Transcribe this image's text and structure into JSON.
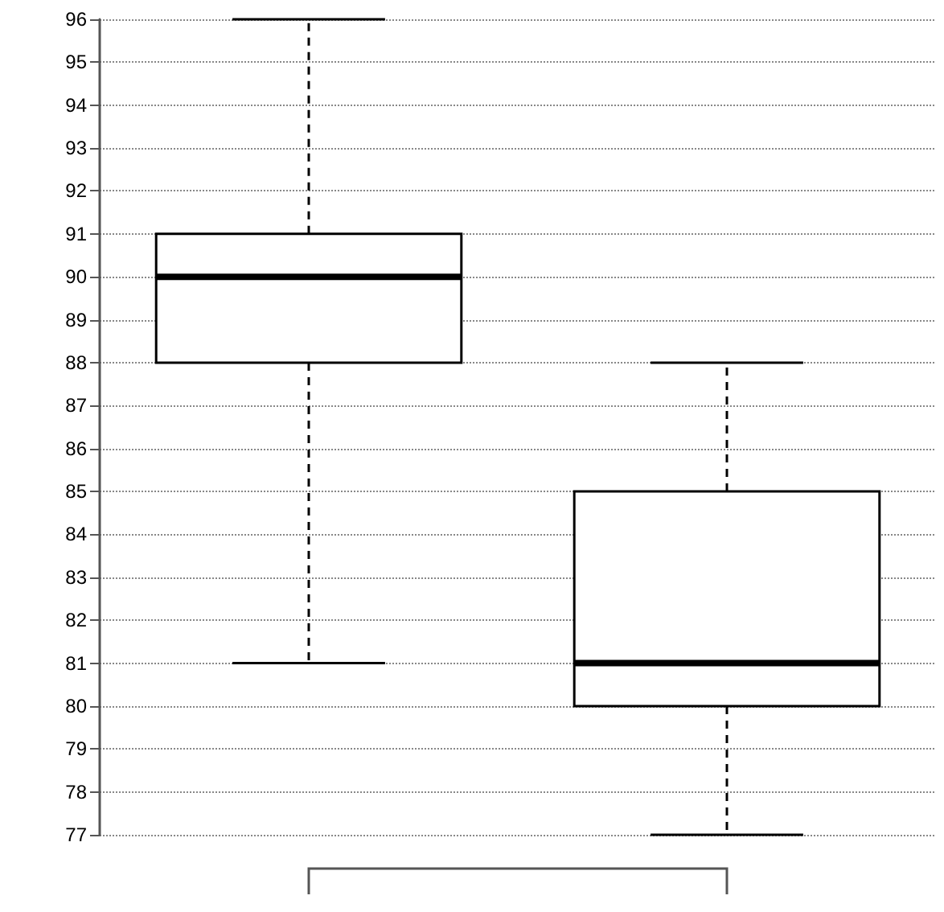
{
  "chart_data": {
    "type": "box",
    "categories": [
      null,
      null
    ],
    "boxes": [
      {
        "low": 81,
        "q1": 88,
        "median": 90,
        "q3": 91,
        "high": 96
      },
      {
        "low": 77,
        "q1": 80,
        "median": 81,
        "q3": 85,
        "high": 88
      }
    ],
    "ylim": [
      77,
      96
    ],
    "yticks": [
      77,
      78,
      79,
      80,
      81,
      82,
      83,
      84,
      85,
      86,
      87,
      88,
      89,
      90,
      91,
      92,
      93,
      94,
      95,
      96
    ],
    "grid": "y"
  }
}
